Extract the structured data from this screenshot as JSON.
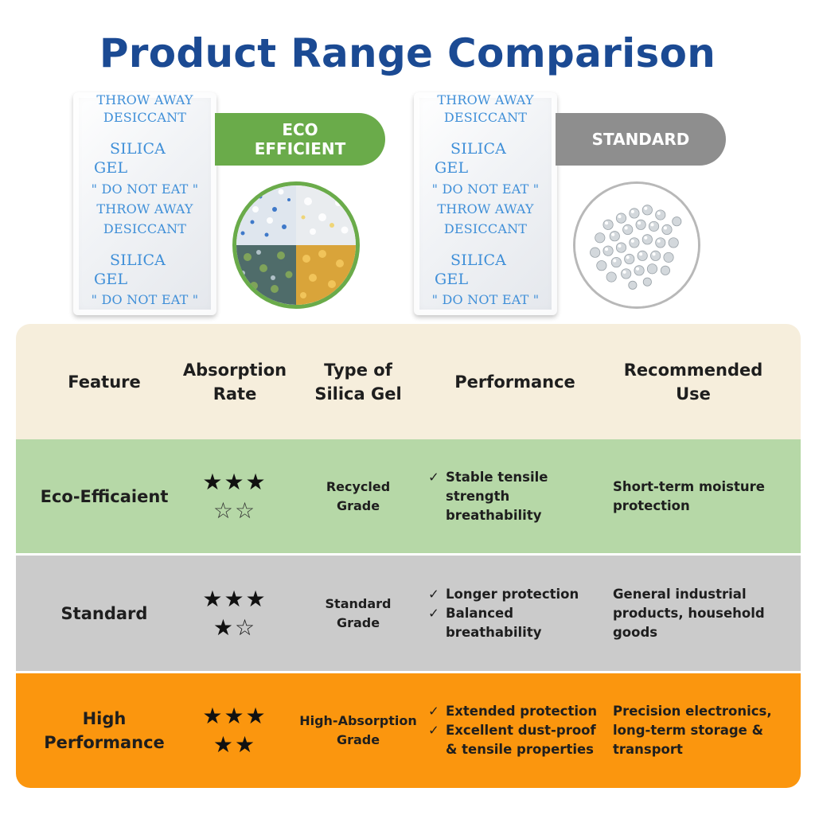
{
  "title": "Product Range Comparison",
  "products": [
    {
      "badge_lines": [
        "ECO",
        "EFFICIENT"
      ],
      "badge_color": "#6aab4a",
      "packet_text": [
        "THROW AWAY",
        "DESICCANT",
        "SILICA",
        "GEL",
        "\" DO NOT EAT \"",
        "THROW AWAY",
        "DESICCANT",
        "SILICA",
        "GEL",
        "\" DO NOT EAT \""
      ],
      "bead_image": "mixed-color-silica-beads-icon"
    },
    {
      "badge_lines": [
        "STANDARD"
      ],
      "badge_color": "#8e8e8e",
      "packet_text": [
        "THROW AWAY",
        "DESICCANT",
        "SILICA",
        "GEL",
        "\" DO NOT EAT \"",
        "THROW AWAY",
        "DESICCANT",
        "SILICA",
        "GEL",
        "\" DO NOT EAT \""
      ],
      "bead_image": "clear-silica-beads-icon"
    }
  ],
  "table": {
    "headers": [
      "Feature",
      "Absorption Rate",
      "Type of Silica Gel",
      "Performance",
      "Recommended Use"
    ],
    "rows": [
      {
        "feature": "Eco-Efficaient",
        "rating": 3,
        "rating_max": 5,
        "stars_text": {
          "line1": "★★★",
          "line2": "☆☆"
        },
        "grade": "Recycled Grade",
        "performance": [
          "Stable tensile strength breathability"
        ],
        "use": "Short-term moisture protection",
        "color": "#b6d8a7"
      },
      {
        "feature": "Standard",
        "rating": 4,
        "rating_max": 5,
        "stars_text": {
          "line1": "★★★",
          "line2": "★☆"
        },
        "grade": "Standard Grade",
        "performance": [
          "Longer protection",
          "Balanced breathability"
        ],
        "use": "General industrial products, household goods",
        "color": "#cbcbcb"
      },
      {
        "feature": "High Performance",
        "rating": 5,
        "rating_max": 5,
        "stars_text": {
          "line1": "★★★",
          "line2": "★★"
        },
        "grade": "High-Absorption Grade",
        "performance": [
          "Extended protection",
          "Excellent dust-proof & tensile properties"
        ],
        "use": "Precision electronics, long-term storage & transport",
        "color": "#fb960e"
      }
    ],
    "check_mark": "✓",
    "header_color": "#f6eedc"
  }
}
